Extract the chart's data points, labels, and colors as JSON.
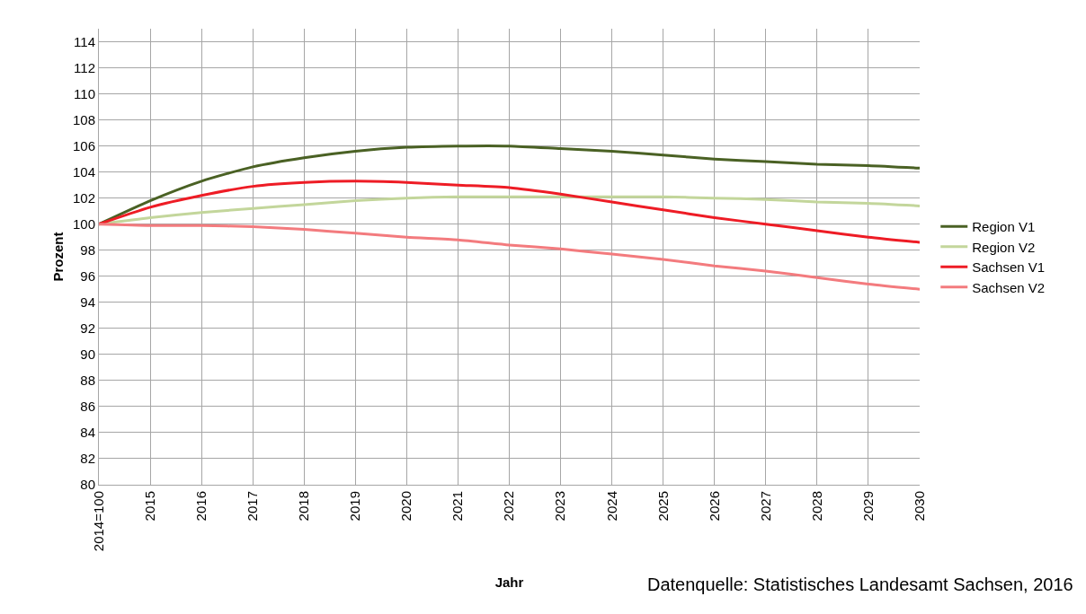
{
  "chart_data": {
    "type": "line",
    "xlabel": "Jahr",
    "ylabel": "Prozent",
    "categories": [
      "2014=100",
      "2015",
      "2016",
      "2017",
      "2018",
      "2019",
      "2020",
      "2021",
      "2022",
      "2023",
      "2024",
      "2025",
      "2026",
      "2027",
      "2028",
      "2029",
      "2030"
    ],
    "series": [
      {
        "name": "Region V1",
        "color": "#4a6124",
        "values": [
          100,
          101.8,
          103.3,
          104.4,
          105.1,
          105.6,
          105.9,
          106.0,
          106.0,
          105.8,
          105.6,
          105.3,
          105.0,
          104.8,
          104.6,
          104.5,
          104.3
        ]
      },
      {
        "name": "Region V2",
        "color": "#c3d69b",
        "values": [
          100,
          100.5,
          100.9,
          101.2,
          101.5,
          101.8,
          102.0,
          102.1,
          102.1,
          102.1,
          102.1,
          102.1,
          102.0,
          101.9,
          101.7,
          101.6,
          101.4
        ]
      },
      {
        "name": "Sachsen V1",
        "color": "#ee1c25",
        "values": [
          100,
          101.3,
          102.2,
          102.9,
          103.2,
          103.3,
          103.2,
          103.0,
          102.8,
          102.3,
          101.7,
          101.1,
          100.5,
          100.0,
          99.5,
          99.0,
          98.6
        ]
      },
      {
        "name": "Sachsen V2",
        "color": "#f37b7e",
        "values": [
          100,
          99.9,
          99.9,
          99.8,
          99.6,
          99.3,
          99.0,
          98.8,
          98.4,
          98.1,
          97.7,
          97.3,
          96.8,
          96.4,
          95.9,
          95.4,
          95.0
        ]
      }
    ],
    "ylim": [
      80,
      115
    ],
    "yticks": [
      80,
      82,
      84,
      86,
      88,
      90,
      92,
      94,
      96,
      98,
      100,
      102,
      104,
      106,
      108,
      110,
      112,
      114
    ],
    "grid": true,
    "legend": "right",
    "marker": "none",
    "line_style": "solid",
    "annotations": [
      "Datenquelle: Statistisches Landesamt Sachsen, 2016"
    ]
  }
}
